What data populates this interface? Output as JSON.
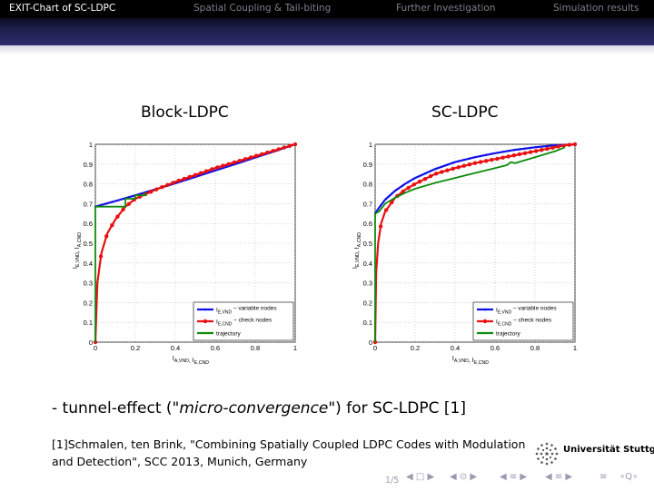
{
  "nav": {
    "items": [
      "EXIT-Chart of SC-LDPC",
      "Spatial Coupling & Tail-biting",
      "Further Investigation",
      "Simulation results"
    ],
    "active": 0
  },
  "chart_data": [
    {
      "type": "line",
      "title": "Block-LDPC",
      "xlabel": "I_{A,VND}, I_{E,CND}",
      "ylabel": "I_{E,VND}, I_{A,CND}",
      "xlim": [
        0,
        1
      ],
      "ylim": [
        0,
        1
      ],
      "xticks": [
        "0",
        "0.2",
        "0.4",
        "0.6",
        "0.8",
        "1"
      ],
      "yticks": [
        "0",
        "0.1",
        "0.2",
        "0.3",
        "0.4",
        "0.5",
        "0.6",
        "0.7",
        "0.8",
        "0.9",
        "1"
      ],
      "grid": true,
      "legend_position": "bottom-right",
      "series": [
        {
          "name": "I_{E,VND} – variable nodes",
          "color": "#1010e8",
          "marker": "dot",
          "x": [
            0,
            0.1,
            0.2,
            0.3,
            0.4,
            0.5,
            0.6,
            0.7,
            0.8,
            0.9,
            1.0
          ],
          "y": [
            0.685,
            0.713,
            0.742,
            0.772,
            0.803,
            0.835,
            0.868,
            0.9,
            0.933,
            0.966,
            1.0
          ]
        },
        {
          "name": "I_{E,CND} – check nodes",
          "color": "#e81010",
          "marker": "circle",
          "x": [
            0,
            0.01,
            0.03,
            0.06,
            0.1,
            0.15,
            0.2,
            0.3,
            0.4,
            0.5,
            0.6,
            0.7,
            0.8,
            0.9,
            1.0
          ],
          "y": [
            0,
            0.3,
            0.45,
            0.55,
            0.62,
            0.685,
            0.725,
            0.77,
            0.81,
            0.845,
            0.88,
            0.91,
            0.94,
            0.97,
            1.0
          ]
        },
        {
          "name": "trajectory",
          "color": "#0c8a0c",
          "marker": "none",
          "x": [
            0,
            0,
            0.15,
            0.15,
            0.2,
            0.2,
            0.25,
            0.25
          ],
          "y": [
            0,
            0.685,
            0.685,
            0.725,
            0.725,
            0.742,
            0.742,
            0.755
          ]
        }
      ]
    },
    {
      "type": "line",
      "title": "SC-LDPC",
      "xlabel": "I_{A,VND}, I_{E,CND}",
      "ylabel": "I_{E,VND}, I_{A,CND}",
      "xlim": [
        0,
        1
      ],
      "ylim": [
        0,
        1
      ],
      "xticks": [
        "0",
        "0.2",
        "0.4",
        "0.6",
        "0.8",
        "1"
      ],
      "yticks": [
        "0",
        "0.1",
        "0.2",
        "0.3",
        "0.4",
        "0.5",
        "0.6",
        "0.7",
        "0.8",
        "0.9",
        "1"
      ],
      "grid": true,
      "legend_position": "bottom-right",
      "series": [
        {
          "name": "I_{E,VND} – variable nodes",
          "color": "#1010e8",
          "marker": "dot",
          "x": [
            0,
            0.02,
            0.05,
            0.1,
            0.15,
            0.2,
            0.3,
            0.4,
            0.5,
            0.6,
            0.7,
            0.8,
            0.9,
            1.0
          ],
          "y": [
            0.65,
            0.68,
            0.72,
            0.765,
            0.8,
            0.83,
            0.875,
            0.91,
            0.935,
            0.955,
            0.972,
            0.985,
            0.995,
            1.0
          ]
        },
        {
          "name": "I_{E,CND} – check nodes",
          "color": "#e81010",
          "marker": "circle",
          "x": [
            0,
            0.005,
            0.015,
            0.03,
            0.05,
            0.1,
            0.15,
            0.2,
            0.3,
            0.4,
            0.5,
            0.6,
            0.7,
            0.8,
            0.9,
            0.95,
            1.0
          ],
          "y": [
            0,
            0.35,
            0.5,
            0.6,
            0.66,
            0.73,
            0.77,
            0.8,
            0.85,
            0.88,
            0.905,
            0.925,
            0.945,
            0.965,
            0.985,
            0.995,
            1.0
          ]
        },
        {
          "name": "trajectory",
          "color": "#0c8a0c",
          "marker": "none",
          "x": [
            0,
            0,
            0.02,
            0.05,
            0.1,
            0.15,
            0.2,
            0.3,
            0.4,
            0.5,
            0.6,
            0.66,
            0.68,
            0.7,
            0.8,
            0.9,
            0.95
          ],
          "y": [
            0,
            0.65,
            0.66,
            0.7,
            0.73,
            0.755,
            0.775,
            0.805,
            0.83,
            0.855,
            0.88,
            0.895,
            0.91,
            0.905,
            0.935,
            0.965,
            0.985
          ]
        }
      ]
    }
  ],
  "charts_text": {
    "legend": [
      "variable nodes",
      "check nodes",
      "trajectory"
    ]
  },
  "note": {
    "prefix": "- tunnel-effect (\"",
    "emph": "micro-convergence",
    "suffix": "\") for SC-LDPC [1]"
  },
  "reference": "[1]Schmalen, ten Brink, \"Combining Spatially Coupled LDPC Codes with Modulation and Detection\", SCC 2013, Munich, Germany",
  "logo_text": "Universität Stuttgart",
  "page_number": "1/5",
  "nav_symbols": [
    "◀ □ ▶",
    "◀ ⊙ ▶",
    "◀ ≡ ▶",
    "◀ ≡ ▶",
    "≡",
    "∘Q∘"
  ]
}
